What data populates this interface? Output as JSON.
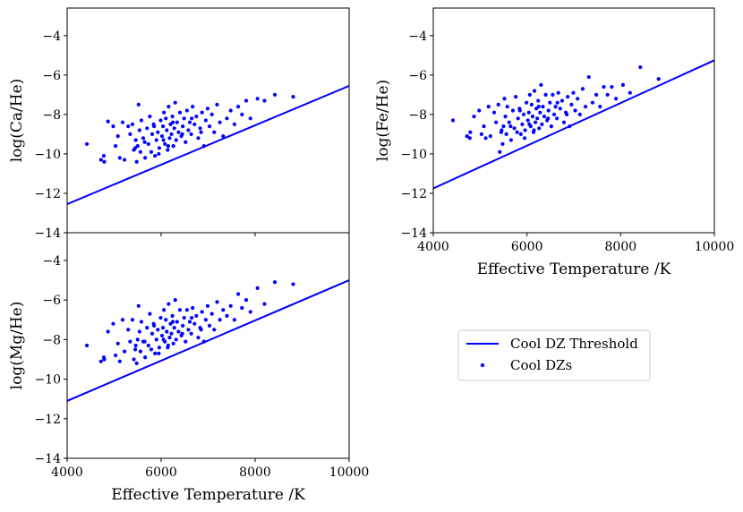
{
  "chart_data": [
    {
      "type": "scatter",
      "id": "ca",
      "ylabel": "log(Ca/He)",
      "xlabel": "",
      "xlim": [
        4000,
        10000
      ],
      "ylim": [
        -14,
        -2.6
      ],
      "xticks": [
        4000,
        6000,
        8000,
        10000
      ],
      "yticks": [
        -14,
        -12,
        -10,
        -8,
        -6,
        -4
      ],
      "yticklabels": [
        "−14",
        "−12",
        "−10",
        "−8",
        "−6",
        "−4"
      ],
      "show_xticklabels": false,
      "threshold": {
        "x": [
          4000,
          10000
        ],
        "y": [
          -12.55,
          -6.55
        ]
      },
      "points": [
        [
          4420,
          -9.5
        ],
        [
          4720,
          -10.3
        ],
        [
          4780,
          -10.1
        ],
        [
          4790,
          -10.4
        ],
        [
          4870,
          -8.35
        ],
        [
          4980,
          -8.6
        ],
        [
          5030,
          -9.6
        ],
        [
          5080,
          -9.1
        ],
        [
          5120,
          -10.2
        ],
        [
          5180,
          -8.4
        ],
        [
          5220,
          -10.3
        ],
        [
          5300,
          -8.6
        ],
        [
          5340,
          -9.0
        ],
        [
          5390,
          -8.5
        ],
        [
          5420,
          -9.8
        ],
        [
          5460,
          -9.3
        ],
        [
          5480,
          -10.4
        ],
        [
          5500,
          -9.6
        ],
        [
          5520,
          -7.5
        ],
        [
          5540,
          -8.8
        ],
        [
          5560,
          -9.9
        ],
        [
          5580,
          -8.3
        ],
        [
          5620,
          -9.2
        ],
        [
          5660,
          -10.2
        ],
        [
          5700,
          -8.7
        ],
        [
          5730,
          -9.5
        ],
        [
          5760,
          -8.1
        ],
        [
          5790,
          -9.9
        ],
        [
          5810,
          -9.0
        ],
        [
          5840,
          -8.5
        ],
        [
          5870,
          -10.1
        ],
        [
          5900,
          -9.3
        ],
        [
          5930,
          -8.9
        ],
        [
          5960,
          -9.7
        ],
        [
          5990,
          -8.3
        ],
        [
          6020,
          -9.1
        ],
        [
          6040,
          -8.6
        ],
        [
          6060,
          -7.9
        ],
        [
          6080,
          -9.5
        ],
        [
          6100,
          -8.2
        ],
        [
          6120,
          -8.8
        ],
        [
          6140,
          -9.8
        ],
        [
          6160,
          -7.6
        ],
        [
          6180,
          -9.2
        ],
        [
          6200,
          -8.5
        ],
        [
          6220,
          -9.0
        ],
        [
          6240,
          -8.1
        ],
        [
          6260,
          -9.6
        ],
        [
          6280,
          -8.7
        ],
        [
          6300,
          -7.4
        ],
        [
          6320,
          -9.3
        ],
        [
          6340,
          -8.4
        ],
        [
          6370,
          -8.9
        ],
        [
          6400,
          -7.9
        ],
        [
          6430,
          -9.1
        ],
        [
          6460,
          -8.6
        ],
        [
          6490,
          -8.2
        ],
        [
          6520,
          -9.4
        ],
        [
          6550,
          -7.8
        ],
        [
          6580,
          -8.8
        ],
        [
          6610,
          -8.4
        ],
        [
          6640,
          -9.0
        ],
        [
          6670,
          -7.6
        ],
        [
          6710,
          -8.5
        ],
        [
          6750,
          -8.1
        ],
        [
          6790,
          -9.2
        ],
        [
          6830,
          -8.7
        ],
        [
          6870,
          -7.9
        ],
        [
          6910,
          -9.6
        ],
        [
          6950,
          -8.3
        ],
        [
          6990,
          -7.7
        ],
        [
          7030,
          -8.6
        ],
        [
          7080,
          -8.0
        ],
        [
          7130,
          -8.9
        ],
        [
          7190,
          -7.5
        ],
        [
          7250,
          -8.4
        ],
        [
          7320,
          -9.1
        ],
        [
          7400,
          -8.2
        ],
        [
          7480,
          -7.8
        ],
        [
          7560,
          -8.5
        ],
        [
          7640,
          -7.6
        ],
        [
          7720,
          -8.0
        ],
        [
          7810,
          -7.3
        ],
        [
          7900,
          -8.2
        ],
        [
          8050,
          -7.2
        ],
        [
          8200,
          -7.3
        ],
        [
          8420,
          -7.0
        ],
        [
          8810,
          -7.1
        ],
        [
          5450,
          -9.7
        ],
        [
          5650,
          -9.4
        ],
        [
          5850,
          -8.6
        ],
        [
          6050,
          -9.3
        ],
        [
          6250,
          -8.4
        ],
        [
          6450,
          -9.0
        ],
        [
          6650,
          -8.2
        ],
        [
          6850,
          -8.9
        ],
        [
          5950,
          -10.0
        ],
        [
          6150,
          -9.6
        ]
      ]
    },
    {
      "type": "scatter",
      "id": "fe",
      "ylabel": "log(Fe/He)",
      "xlabel": "Effective Temperature /K",
      "xlim": [
        4000,
        10000
      ],
      "ylim": [
        -14,
        -2.6
      ],
      "xticks": [
        4000,
        6000,
        8000,
        10000
      ],
      "xticklabels": [
        "4000",
        "6000",
        "8000",
        "10000"
      ],
      "yticks": [
        -14,
        -12,
        -10,
        -8,
        -6,
        -4
      ],
      "yticklabels": [
        "−14",
        "−12",
        "−10",
        "−8",
        "−6",
        "−4"
      ],
      "show_xticklabels": true,
      "threshold": {
        "x": [
          4000,
          10000
        ],
        "y": [
          -11.75,
          -5.25
        ]
      },
      "points": [
        [
          4420,
          -8.3
        ],
        [
          4720,
          -9.1
        ],
        [
          4780,
          -9.2
        ],
        [
          4790,
          -8.9
        ],
        [
          4870,
          -8.1
        ],
        [
          4980,
          -7.8
        ],
        [
          5030,
          -9.0
        ],
        [
          5080,
          -8.6
        ],
        [
          5120,
          -9.2
        ],
        [
          5180,
          -7.6
        ],
        [
          5220,
          -9.1
        ],
        [
          5300,
          -7.9
        ],
        [
          5340,
          -8.4
        ],
        [
          5390,
          -7.5
        ],
        [
          5420,
          -9.9
        ],
        [
          5460,
          -8.8
        ],
        [
          5480,
          -9.5
        ],
        [
          5500,
          -8.6
        ],
        [
          5520,
          -7.2
        ],
        [
          5540,
          -8.1
        ],
        [
          5560,
          -9.0
        ],
        [
          5580,
          -7.6
        ],
        [
          5620,
          -8.4
        ],
        [
          5660,
          -9.3
        ],
        [
          5700,
          -7.8
        ],
        [
          5730,
          -8.7
        ],
        [
          5760,
          -7.1
        ],
        [
          5790,
          -8.9
        ],
        [
          5810,
          -8.2
        ],
        [
          5840,
          -7.7
        ],
        [
          5870,
          -9.0
        ],
        [
          5900,
          -8.5
        ],
        [
          5930,
          -8.0
        ],
        [
          5960,
          -8.8
        ],
        [
          5990,
          -7.4
        ],
        [
          6020,
          -8.3
        ],
        [
          6040,
          -7.9
        ],
        [
          6060,
          -7.0
        ],
        [
          6080,
          -8.6
        ],
        [
          6100,
          -7.5
        ],
        [
          6120,
          -8.1
        ],
        [
          6140,
          -8.9
        ],
        [
          6160,
          -6.8
        ],
        [
          6180,
          -8.4
        ],
        [
          6200,
          -7.7
        ],
        [
          6220,
          -8.2
        ],
        [
          6240,
          -7.3
        ],
        [
          6260,
          -8.7
        ],
        [
          6280,
          -7.9
        ],
        [
          6300,
          -6.5
        ],
        [
          6320,
          -8.5
        ],
        [
          6340,
          -7.6
        ],
        [
          6370,
          -8.1
        ],
        [
          6400,
          -7.0
        ],
        [
          6430,
          -8.3
        ],
        [
          6460,
          -7.8
        ],
        [
          6490,
          -7.4
        ],
        [
          6520,
          -8.6
        ],
        [
          6550,
          -7.0
        ],
        [
          6580,
          -8.0
        ],
        [
          6610,
          -7.6
        ],
        [
          6640,
          -8.2
        ],
        [
          6670,
          -6.9
        ],
        [
          6710,
          -7.7
        ],
        [
          6750,
          -7.3
        ],
        [
          6790,
          -8.4
        ],
        [
          6830,
          -7.9
        ],
        [
          6870,
          -7.1
        ],
        [
          6910,
          -8.6
        ],
        [
          6950,
          -7.5
        ],
        [
          6990,
          -6.9
        ],
        [
          7030,
          -7.8
        ],
        [
          7080,
          -7.2
        ],
        [
          7130,
          -8.0
        ],
        [
          7190,
          -6.7
        ],
        [
          7250,
          -7.6
        ],
        [
          7320,
          -6.1
        ],
        [
          7400,
          -7.4
        ],
        [
          7480,
          -7.0
        ],
        [
          7560,
          -7.6
        ],
        [
          7640,
          -6.6
        ],
        [
          7720,
          -7.0
        ],
        [
          7810,
          -6.6
        ],
        [
          7900,
          -7.2
        ],
        [
          8050,
          -6.5
        ],
        [
          8200,
          -6.9
        ],
        [
          8420,
          -5.6
        ],
        [
          8810,
          -6.2
        ],
        [
          5450,
          -8.9
        ],
        [
          5650,
          -8.6
        ],
        [
          5850,
          -7.8
        ],
        [
          6050,
          -8.5
        ],
        [
          6250,
          -7.6
        ],
        [
          6450,
          -8.2
        ],
        [
          6650,
          -7.4
        ],
        [
          6850,
          -8.0
        ],
        [
          5950,
          -9.2
        ],
        [
          6150,
          -8.8
        ]
      ]
    },
    {
      "type": "scatter",
      "id": "mg",
      "ylabel": "log(Mg/He)",
      "xlabel": "Effective Temperature /K",
      "xlim": [
        4000,
        10000
      ],
      "ylim": [
        -14,
        -2.6
      ],
      "xticks": [
        4000,
        6000,
        8000,
        10000
      ],
      "xticklabels": [
        "4000",
        "6000",
        "8000",
        "10000"
      ],
      "yticks": [
        -14,
        -12,
        -10,
        -8,
        -6,
        -4
      ],
      "yticklabels": [
        "−14",
        "−12",
        "−10",
        "−8",
        "−6",
        "−4"
      ],
      "show_xticklabels": true,
      "threshold": {
        "x": [
          4000,
          10000
        ],
        "y": [
          -11.1,
          -5.0
        ]
      },
      "points": [
        [
          4420,
          -8.3
        ],
        [
          4720,
          -9.1
        ],
        [
          4780,
          -8.9
        ],
        [
          4790,
          -9.0
        ],
        [
          4870,
          -7.6
        ],
        [
          4980,
          -7.2
        ],
        [
          5030,
          -8.8
        ],
        [
          5080,
          -8.2
        ],
        [
          5120,
          -9.1
        ],
        [
          5180,
          -7.0
        ],
        [
          5220,
          -8.6
        ],
        [
          5300,
          -7.5
        ],
        [
          5340,
          -8.1
        ],
        [
          5390,
          -7.0
        ],
        [
          5420,
          -9.0
        ],
        [
          5460,
          -8.3
        ],
        [
          5480,
          -9.2
        ],
        [
          5500,
          -8.0
        ],
        [
          5520,
          -6.3
        ],
        [
          5540,
          -7.6
        ],
        [
          5560,
          -8.6
        ],
        [
          5580,
          -7.1
        ],
        [
          5620,
          -8.1
        ],
        [
          5660,
          -8.9
        ],
        [
          5700,
          -7.4
        ],
        [
          5730,
          -8.3
        ],
        [
          5760,
          -6.7
        ],
        [
          5790,
          -8.5
        ],
        [
          5810,
          -7.7
        ],
        [
          5840,
          -7.2
        ],
        [
          5870,
          -8.7
        ],
        [
          5900,
          -8.0
        ],
        [
          5930,
          -7.5
        ],
        [
          5960,
          -8.4
        ],
        [
          5990,
          -6.9
        ],
        [
          6020,
          -7.8
        ],
        [
          6040,
          -7.4
        ],
        [
          6060,
          -6.5
        ],
        [
          6080,
          -8.1
        ],
        [
          6100,
          -7.0
        ],
        [
          6120,
          -7.6
        ],
        [
          6140,
          -8.4
        ],
        [
          6160,
          -6.2
        ],
        [
          6180,
          -7.9
        ],
        [
          6200,
          -7.2
        ],
        [
          6220,
          -7.7
        ],
        [
          6240,
          -6.8
        ],
        [
          6260,
          -8.2
        ],
        [
          6280,
          -7.4
        ],
        [
          6300,
          -6.0
        ],
        [
          6320,
          -8.0
        ],
        [
          6340,
          -7.1
        ],
        [
          6370,
          -7.6
        ],
        [
          6400,
          -6.5
        ],
        [
          6430,
          -7.8
        ],
        [
          6460,
          -7.3
        ],
        [
          6490,
          -6.9
        ],
        [
          6520,
          -8.1
        ],
        [
          6550,
          -6.5
        ],
        [
          6580,
          -7.5
        ],
        [
          6610,
          -7.1
        ],
        [
          6640,
          -7.7
        ],
        [
          6670,
          -6.4
        ],
        [
          6710,
          -7.2
        ],
        [
          6750,
          -6.8
        ],
        [
          6790,
          -7.9
        ],
        [
          6830,
          -7.4
        ],
        [
          6870,
          -6.6
        ],
        [
          6910,
          -8.1
        ],
        [
          6950,
          -7.0
        ],
        [
          6990,
          -6.3
        ],
        [
          7030,
          -7.3
        ],
        [
          7080,
          -6.7
        ],
        [
          7130,
          -7.5
        ],
        [
          7190,
          -6.1
        ],
        [
          7250,
          -7.0
        ],
        [
          7320,
          -6.5
        ],
        [
          7400,
          -6.8
        ],
        [
          7480,
          -6.3
        ],
        [
          7560,
          -7.0
        ],
        [
          7640,
          -5.7
        ],
        [
          7720,
          -6.4
        ],
        [
          7810,
          -6.0
        ],
        [
          7900,
          -6.6
        ],
        [
          8050,
          -5.4
        ],
        [
          8200,
          -6.2
        ],
        [
          8420,
          -5.1
        ],
        [
          8810,
          -5.2
        ],
        [
          5450,
          -8.5
        ],
        [
          5650,
          -8.1
        ],
        [
          5850,
          -7.3
        ],
        [
          6050,
          -8.0
        ],
        [
          6250,
          -7.1
        ],
        [
          6450,
          -7.7
        ],
        [
          6650,
          -6.9
        ],
        [
          6850,
          -7.5
        ],
        [
          5950,
          -8.7
        ],
        [
          6150,
          -8.3
        ]
      ]
    }
  ],
  "legend": {
    "entries": [
      {
        "label": "Cool DZ Threshold",
        "marker": "line"
      },
      {
        "label": "Cool DZs",
        "marker": "dot"
      }
    ]
  },
  "colors": {
    "series": "#0000ff",
    "axis": "#000000"
  }
}
